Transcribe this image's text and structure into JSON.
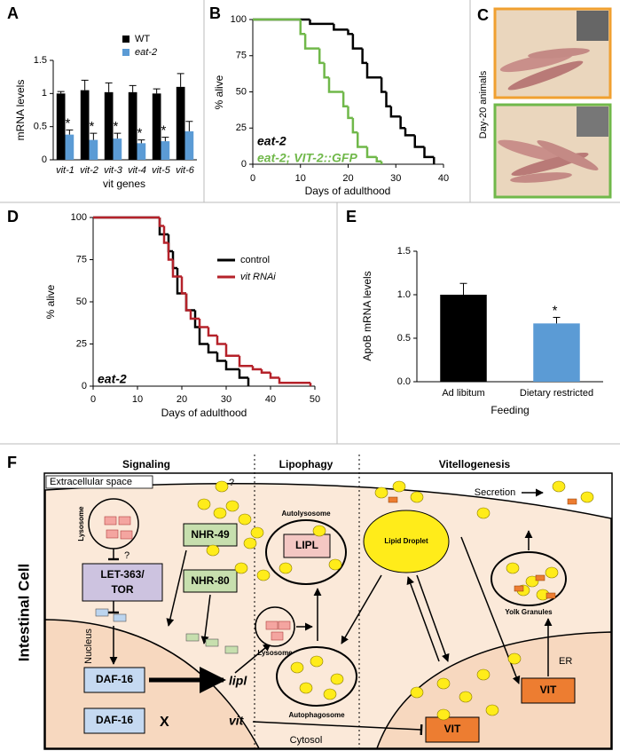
{
  "chart_data": [
    {
      "panel": "A",
      "type": "bar",
      "xlabel": "vit genes",
      "ylabel": "mRNA levels",
      "categories": [
        "vit-1",
        "vit-2",
        "vit-3",
        "vit-4",
        "vit-5",
        "vit-6"
      ],
      "ylim": [
        0,
        1.5
      ],
      "yticks": [
        0,
        0.5,
        1,
        1.5
      ],
      "legend": "upper right",
      "series": [
        {
          "name": "WT",
          "color": "#000000",
          "values": [
            1.0,
            1.05,
            1.02,
            1.02,
            1.0,
            1.1
          ],
          "errors": [
            0.03,
            0.15,
            0.14,
            0.1,
            0.07,
            0.2
          ]
        },
        {
          "name": "eat-2",
          "color": "#5b9bd5",
          "values": [
            0.38,
            0.3,
            0.32,
            0.25,
            0.28,
            0.43
          ],
          "errors": [
            0.07,
            0.1,
            0.08,
            0.05,
            0.06,
            0.15
          ],
          "significance": [
            "*",
            "*",
            "*",
            "*",
            "*",
            null
          ]
        }
      ]
    },
    {
      "panel": "B",
      "type": "line",
      "step": true,
      "xlabel": "Days of adulthood",
      "ylabel": "% alive",
      "xlim": [
        0,
        40
      ],
      "xticks": [
        0,
        10,
        20,
        30,
        40
      ],
      "ylim": [
        0,
        100
      ],
      "yticks": [
        0,
        25,
        50,
        75,
        100
      ],
      "legend": "lower left",
      "series": [
        {
          "name": "eat-2",
          "color": "#000000",
          "x": [
            0,
            12,
            17,
            20,
            21,
            23,
            24,
            27,
            28,
            29,
            31,
            32,
            34,
            36,
            38
          ],
          "values": [
            100,
            97,
            93,
            90,
            80,
            70,
            60,
            50,
            40,
            33,
            25,
            20,
            12,
            5,
            0
          ]
        },
        {
          "name": "eat-2; VIT-2::GFP",
          "color": "#70b84a",
          "x": [
            0,
            10,
            11,
            14,
            15,
            16,
            19,
            20,
            21,
            22,
            24,
            26,
            27
          ],
          "values": [
            100,
            90,
            80,
            70,
            60,
            50,
            40,
            32,
            22,
            12,
            5,
            2,
            0
          ]
        }
      ]
    },
    {
      "panel": "D",
      "type": "line",
      "step": true,
      "xlabel": "Days of adulthood",
      "ylabel": "% alive",
      "annotation": "eat-2",
      "xlim": [
        0,
        50
      ],
      "xticks": [
        0,
        10,
        20,
        30,
        40,
        50
      ],
      "ylim": [
        0,
        100
      ],
      "yticks": [
        0,
        25,
        50,
        75,
        100
      ],
      "legend": "upper right",
      "series": [
        {
          "name": "control",
          "color": "#000000",
          "x": [
            0,
            15,
            17,
            18,
            19,
            21,
            23,
            24,
            26,
            28,
            30,
            33,
            35
          ],
          "values": [
            100,
            90,
            80,
            70,
            55,
            45,
            35,
            25,
            20,
            15,
            10,
            5,
            0
          ]
        },
        {
          "name": "vit RNAi",
          "color": "#b5222a",
          "x": [
            0,
            15,
            16,
            17,
            18,
            20,
            21,
            22,
            24,
            26,
            28,
            30,
            33,
            36,
            38,
            40,
            42,
            49
          ],
          "values": [
            100,
            95,
            85,
            75,
            65,
            55,
            45,
            40,
            35,
            30,
            25,
            18,
            12,
            10,
            8,
            5,
            2,
            0
          ]
        }
      ]
    },
    {
      "panel": "E",
      "type": "bar",
      "xlabel": "Feeding",
      "ylabel": "ApoB mRNA levels",
      "categories": [
        "Ad libitum",
        "Dietary restricted"
      ],
      "values": [
        1.0,
        0.67
      ],
      "errors": [
        0.13,
        0.07
      ],
      "colors": [
        "#000000",
        "#5b9bd5"
      ],
      "significance": [
        null,
        "*"
      ],
      "ylim": [
        0,
        1.5
      ],
      "yticks": [
        {
          "value": 0,
          "label": "0.0"
        },
        {
          "value": 0.5,
          "label": "0.5"
        },
        {
          "value": 1,
          "label": "1.0"
        },
        {
          "value": 1.5,
          "label": "1.5"
        }
      ]
    }
  ],
  "panel_c": {
    "panel": "C",
    "caption": "Day-20 animals"
  },
  "diagram": {
    "label": "F",
    "headers": [
      "Signaling",
      "Lipophagy",
      "Vitellogenesis"
    ],
    "cell": "Intestinal Cell",
    "extracellular": "Extracellular space",
    "question_marks": [
      "?",
      "?"
    ],
    "lysosome_1": "Lysosome",
    "let363": [
      "LET-363/",
      "TOR"
    ],
    "nhr49": "NHR-49",
    "nhr80": "NHR-80",
    "nucleus": "Nucleus",
    "daf16_1": "DAF-16",
    "lipl_gene": "lipl",
    "daf16_2": "DAF-16",
    "block": "X",
    "vit_gene": "vit",
    "autolysosome": "Autolysosome",
    "lipl_protein": "LIPL",
    "lysosome_2": "Lysosome",
    "autophagosome": "Autophagosome",
    "lipid_droplet": "Lipid Droplet",
    "cytosol": "Cytosol",
    "secretion": "Secretion",
    "yolk_granules": "Yolk Granules",
    "er": "ER",
    "vit_protein_1": "VIT",
    "vit_protein_2": "VIT"
  }
}
